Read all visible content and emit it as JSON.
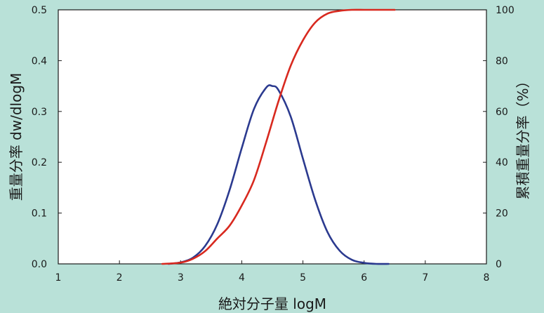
{
  "chart_data": {
    "type": "line",
    "title": "",
    "xlabel": "絶対分子量 logM",
    "ylabel_left": "重量分率 dw/dlogM",
    "ylabel_right": "累積重量分率（%）",
    "xlim": [
      1,
      8
    ],
    "ylim_left": [
      0,
      0.5
    ],
    "ylim_right": [
      0,
      100
    ],
    "x_ticks": [
      1,
      2,
      3,
      4,
      5,
      6,
      7,
      8
    ],
    "x_tick_labels": [
      "1",
      "2",
      "3",
      "4",
      "5",
      "6",
      "7",
      "8"
    ],
    "y_left_ticks": [
      0,
      0.1,
      0.2,
      0.3,
      0.4,
      0.5
    ],
    "y_left_tick_labels": [
      "0.0",
      "0.1",
      "0.2",
      "0.3",
      "0.4",
      "0.5"
    ],
    "y_right_ticks": [
      0,
      20,
      40,
      60,
      80,
      100
    ],
    "y_right_tick_labels": [
      "0",
      "20",
      "40",
      "60",
      "80",
      "100"
    ],
    "grid": false,
    "legend": "none",
    "series": [
      {
        "axis": "left",
        "color": "#2b3a8f",
        "x": [
          2.8,
          3.0,
          3.2,
          3.4,
          3.6,
          3.8,
          4.0,
          4.2,
          4.4,
          4.5,
          4.6,
          4.8,
          5.0,
          5.2,
          5.4,
          5.6,
          5.8,
          6.0,
          6.2,
          6.4
        ],
        "y": [
          0.0,
          0.003,
          0.012,
          0.035,
          0.078,
          0.145,
          0.228,
          0.305,
          0.347,
          0.35,
          0.342,
          0.29,
          0.207,
          0.126,
          0.063,
          0.026,
          0.008,
          0.002,
          0.0,
          0.0
        ]
      },
      {
        "axis": "right",
        "color": "#d8291f",
        "x": [
          2.7,
          3.0,
          3.2,
          3.4,
          3.6,
          3.8,
          4.0,
          4.2,
          4.4,
          4.6,
          4.8,
          5.0,
          5.2,
          5.4,
          5.6,
          5.8,
          6.0,
          6.2,
          6.5
        ],
        "y": [
          0.0,
          0.5,
          2,
          5,
          10,
          15,
          23,
          33,
          48,
          64,
          78,
          88,
          95,
          98.5,
          99.6,
          100,
          100,
          100,
          100
        ]
      }
    ]
  }
}
